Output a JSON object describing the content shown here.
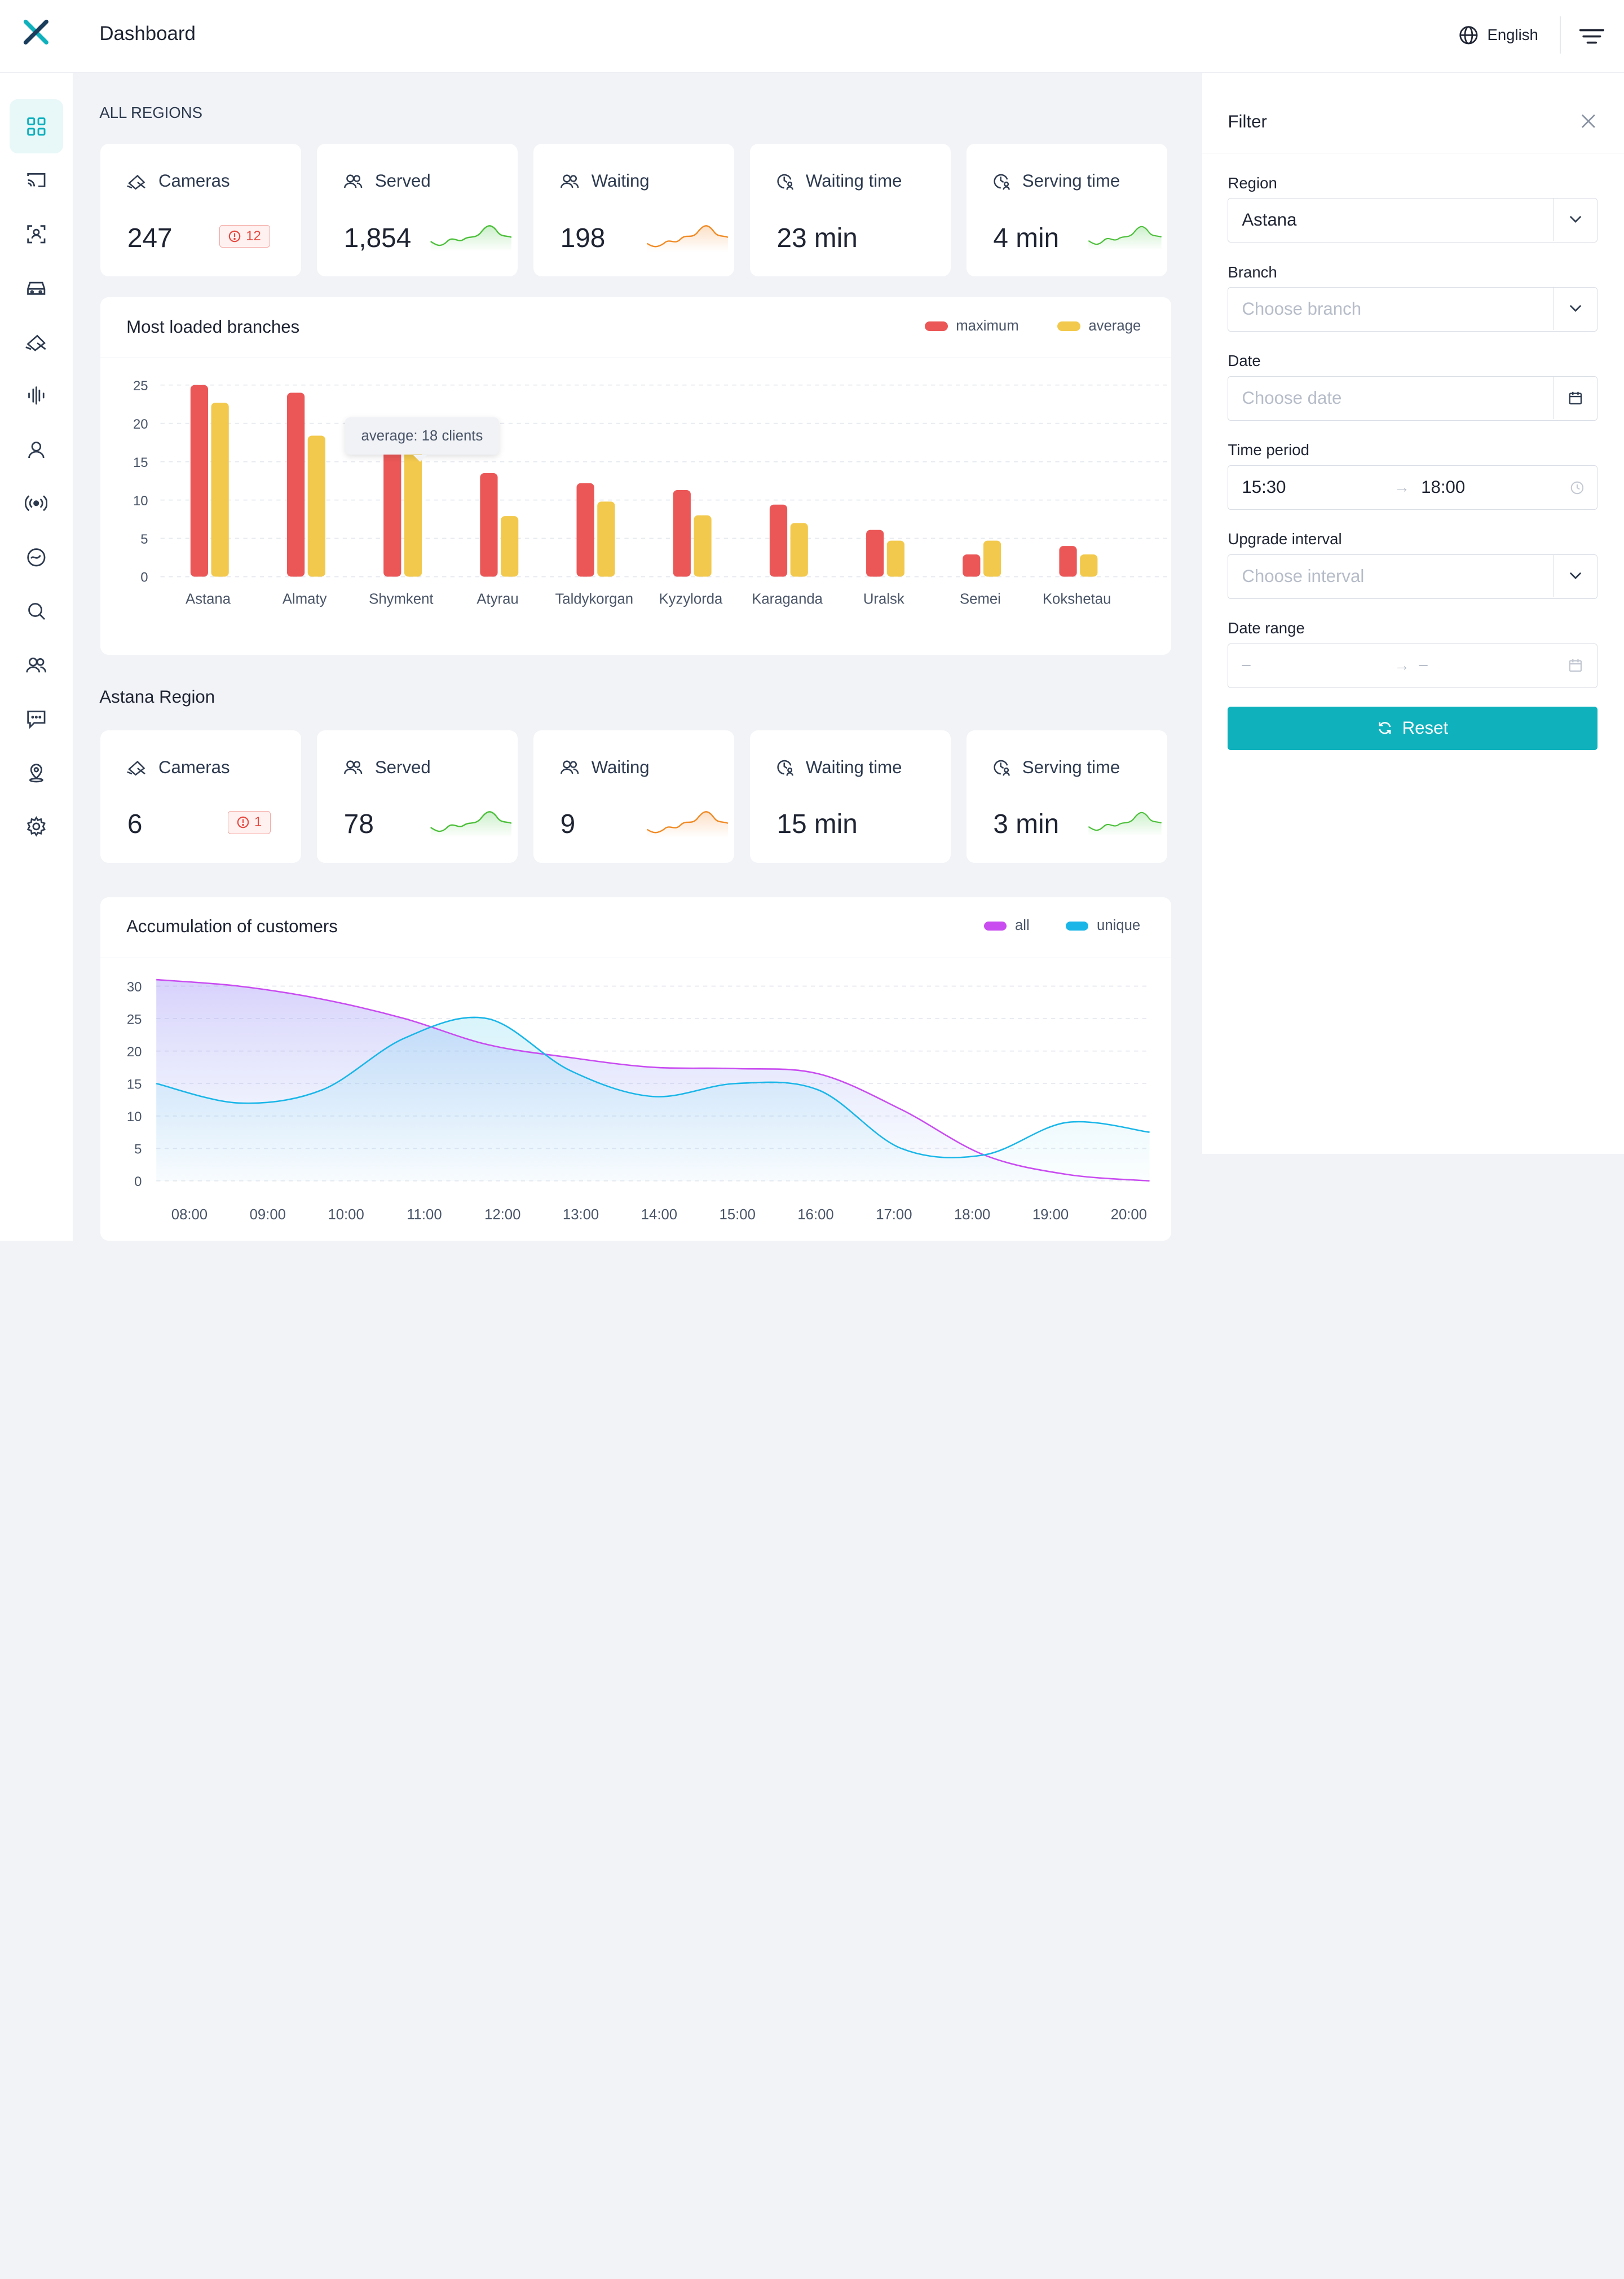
{
  "header": {
    "title": "Dashboard",
    "language": "English"
  },
  "all_regions": {
    "title": "ALL REGIONS",
    "cards": [
      {
        "label": "Cameras",
        "value": "247",
        "badge": "12"
      },
      {
        "label": "Served",
        "value": "1,854"
      },
      {
        "label": "Waiting",
        "value": "198"
      },
      {
        "label": "Waiting time",
        "value": "23 min"
      },
      {
        "label": "Serving time",
        "value": "4 min"
      }
    ]
  },
  "branches_chart": {
    "title": "Most loaded branches",
    "legend": [
      "maximum",
      "average"
    ],
    "tooltip": "average: 18 clients"
  },
  "region": {
    "title": "Astana Region",
    "cards": [
      {
        "label": "Cameras",
        "value": "6",
        "badge": "1"
      },
      {
        "label": "Served",
        "value": "78"
      },
      {
        "label": "Waiting",
        "value": "9"
      },
      {
        "label": "Waiting time",
        "value": "15 min"
      },
      {
        "label": "Serving time",
        "value": "3 min"
      }
    ]
  },
  "accumulation_chart": {
    "title": "Accumulation of customers",
    "legend": [
      "all",
      "unique"
    ]
  },
  "filter": {
    "title": "Filter",
    "region_label": "Region",
    "region_value": "Astana",
    "branch_label": "Branch",
    "branch_placeholder": "Choose branch",
    "date_label": "Date",
    "date_placeholder": "Choose date",
    "time_label": "Time period",
    "time_start": "15:30",
    "time_end": "18:00",
    "interval_label": "Upgrade interval",
    "interval_placeholder": "Choose interval",
    "range_label": "Date range",
    "range_start": "–",
    "range_end": "–",
    "reset_label": "Reset"
  },
  "colors": {
    "accent": "#0fb1bd",
    "maximum": "#eb5757",
    "average": "#f2c94c",
    "all": "#c94cf0",
    "unique": "#1ab6e8"
  },
  "chart_data": [
    {
      "type": "bar",
      "title": "Most loaded branches",
      "categories": [
        "Astana",
        "Almaty",
        "Shymkent",
        "Atyrau",
        "Taldykorgan",
        "Kyzylorda",
        "Karaganda",
        "Uralsk",
        "Semei",
        "Kokshetau"
      ],
      "series": [
        {
          "name": "maximum",
          "values": [
            25,
            24,
            18,
            13.5,
            12.2,
            11.3,
            9.4,
            6.1,
            2.9,
            4
          ]
        },
        {
          "name": "average",
          "values": [
            22.7,
            18.4,
            18,
            7.9,
            9.8,
            8,
            7,
            4.7,
            4.7,
            2.9
          ]
        }
      ],
      "ylim": [
        0,
        25
      ],
      "yticks": [
        0,
        5,
        10,
        15,
        20,
        25
      ],
      "grid": true,
      "legend": "top-right"
    },
    {
      "type": "area",
      "title": "Accumulation of customers",
      "x": [
        "08:00",
        "09:00",
        "10:00",
        "11:00",
        "12:00",
        "13:00",
        "14:00",
        "15:00",
        "16:00",
        "17:00",
        "18:00",
        "19:00",
        "20:00"
      ],
      "series": [
        {
          "name": "all",
          "values": [
            31,
            30,
            28,
            25,
            21,
            19,
            17.5,
            17.3,
            16.5,
            11,
            4,
            1,
            0
          ]
        },
        {
          "name": "unique",
          "values": [
            15,
            12,
            14,
            22,
            25,
            17,
            13,
            15,
            14,
            5,
            4,
            9,
            7.5
          ]
        }
      ],
      "ylim": [
        0,
        30
      ],
      "yticks": [
        0,
        5,
        10,
        15,
        20,
        25,
        30
      ],
      "grid": true,
      "legend": "top-right"
    }
  ]
}
